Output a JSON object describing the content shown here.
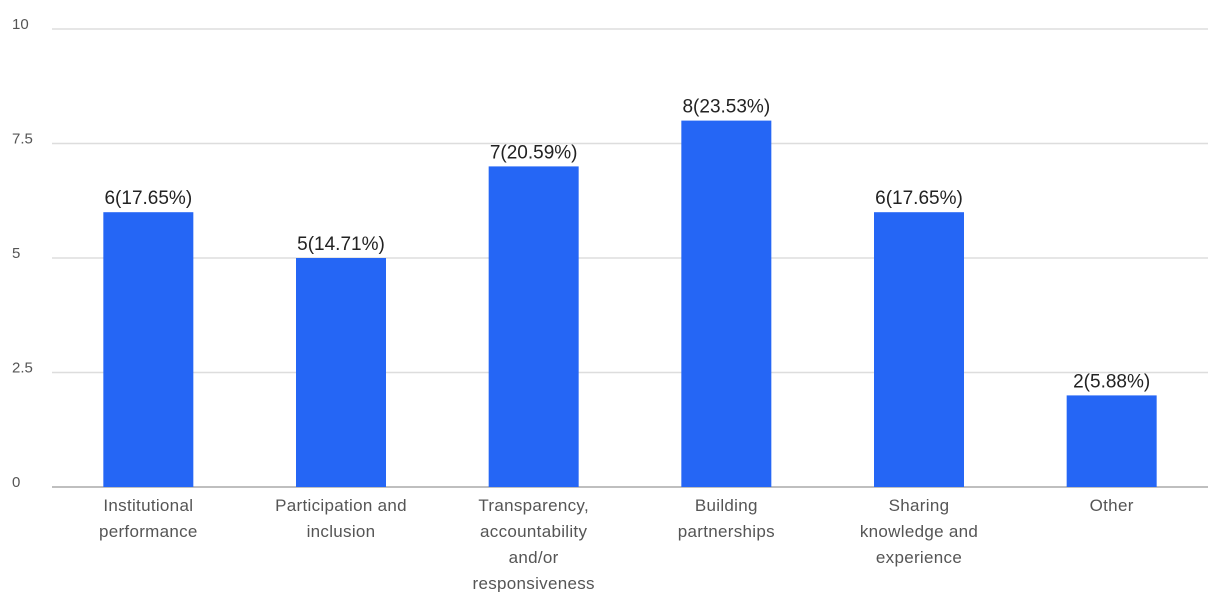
{
  "chart_data": {
    "type": "bar",
    "categories": [
      "Institutional performance",
      "Participation and inclusion",
      "Transparency, accountability and/or responsiveness",
      "Building partnerships",
      "Sharing knowledge and experience",
      "Other"
    ],
    "values": [
      6,
      5,
      7,
      8,
      6,
      2
    ],
    "value_labels": [
      "6(17.65%)",
      "5(14.71%)",
      "7(20.59%)",
      "8(23.53%)",
      "6(17.65%)",
      "2(5.88%)"
    ],
    "color": "#2566f5",
    "ylim": [
      0,
      10
    ],
    "yticks": [
      0,
      2.5,
      5,
      7.5,
      10
    ],
    "grid": true
  }
}
